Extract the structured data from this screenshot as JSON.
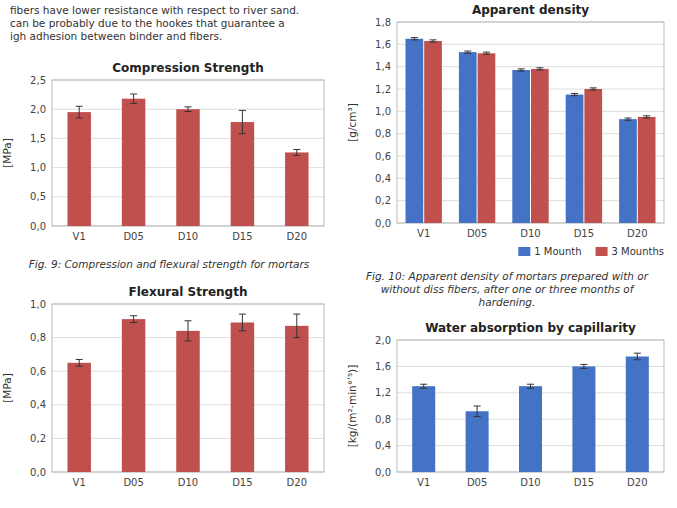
{
  "chart_data": [
    {
      "type": "bar",
      "title": "Compression Strength",
      "y_label": "[MPa]",
      "categories": [
        "V1",
        "D05",
        "D10",
        "D15",
        "D20"
      ],
      "values": [
        1.95,
        2.18,
        2.0,
        1.78,
        1.26
      ],
      "errors": [
        0.1,
        0.08,
        0.04,
        0.2,
        0.05
      ],
      "color": "#C0504D",
      "ylim": [
        0.0,
        2.5
      ],
      "yticks": [
        {
          "value": 0.0,
          "label": "0,0"
        },
        {
          "value": 0.5,
          "label": "0,5"
        },
        {
          "value": 1.0,
          "label": "1,0"
        },
        {
          "value": 1.5,
          "label": "1,5"
        },
        {
          "value": 2.0,
          "label": "2,0"
        },
        {
          "value": 2.5,
          "label": "2,5"
        }
      ],
      "grid": true,
      "annotations": [
        "fibers have lower resistance with respect to river sand.\ncan be probably due to the hookes that guarantee a\nigh adhesion between binder and fibers.",
        "Fig. 9: Compression and flexural strength for mortars"
      ]
    },
    {
      "type": "bar",
      "title": "Flexural Strength",
      "y_label": "[MPa]",
      "categories": [
        "V1",
        "D05",
        "D10",
        "D15",
        "D20"
      ],
      "values": [
        0.65,
        0.91,
        0.84,
        0.89,
        0.87
      ],
      "errors": [
        0.02,
        0.02,
        0.06,
        0.05,
        0.07
      ],
      "color": "#C0504D",
      "ylim": [
        0.0,
        1.0
      ],
      "yticks": [
        {
          "value": 0.0,
          "label": "0,0"
        },
        {
          "value": 0.2,
          "label": "0,2"
        },
        {
          "value": 0.4,
          "label": "0,4"
        },
        {
          "value": 0.6,
          "label": "0,6"
        },
        {
          "value": 0.8,
          "label": "0,8"
        },
        {
          "value": 1.0,
          "label": "1,0"
        }
      ],
      "grid": true
    },
    {
      "type": "bar",
      "title": "Apparent density",
      "y_label": "[g/cm³]",
      "categories": [
        "V1",
        "D05",
        "D10",
        "D15",
        "D20"
      ],
      "series": [
        {
          "name": "1 Mounth",
          "color": "#4472C4",
          "values": [
            1.65,
            1.53,
            1.37,
            1.15,
            0.93
          ],
          "errors": [
            0.01,
            0.01,
            0.01,
            0.01,
            0.01
          ]
        },
        {
          "name": "3 Mounths",
          "color": "#C0504D",
          "values": [
            1.63,
            1.52,
            1.38,
            1.2,
            0.95
          ],
          "errors": [
            0.01,
            0.01,
            0.01,
            0.01,
            0.01
          ]
        }
      ],
      "ylim": [
        0.0,
        1.8
      ],
      "yticks": [
        {
          "value": 0.0,
          "label": "0,0"
        },
        {
          "value": 0.2,
          "label": "0,2"
        },
        {
          "value": 0.4,
          "label": "0,4"
        },
        {
          "value": 0.6,
          "label": "0,6"
        },
        {
          "value": 0.8,
          "label": "0,8"
        },
        {
          "value": 1.0,
          "label": "1,0"
        },
        {
          "value": 1.2,
          "label": "1,2"
        },
        {
          "value": 1.4,
          "label": "1,4"
        },
        {
          "value": 1.6,
          "label": "1,6"
        },
        {
          "value": 1.8,
          "label": "1,8"
        }
      ],
      "grid": true,
      "legend": "lower right",
      "annotations": [
        "Fig. 10: Apparent density of mortars prepared with or\nwithout diss fibers, after one or three months of\nhardening."
      ]
    },
    {
      "type": "bar",
      "title": "Water absorption by capillarity",
      "y_label": "[kg/(m²·min°ʹ⁵)]",
      "categories": [
        "V1",
        "D05",
        "D10",
        "D15",
        "D20"
      ],
      "values": [
        1.3,
        0.92,
        1.3,
        1.6,
        1.75
      ],
      "errors": [
        0.03,
        0.08,
        0.03,
        0.03,
        0.05
      ],
      "color": "#4472C4",
      "ylim": [
        0.0,
        2.0
      ],
      "yticks": [
        {
          "value": 0.0,
          "label": "0,0"
        },
        {
          "value": 0.4,
          "label": "0,4"
        },
        {
          "value": 0.8,
          "label": "0,8"
        },
        {
          "value": 1.2,
          "label": "1,2"
        },
        {
          "value": 1.6,
          "label": "1,6"
        },
        {
          "value": 2.0,
          "label": "2,0"
        }
      ],
      "grid": true
    }
  ]
}
